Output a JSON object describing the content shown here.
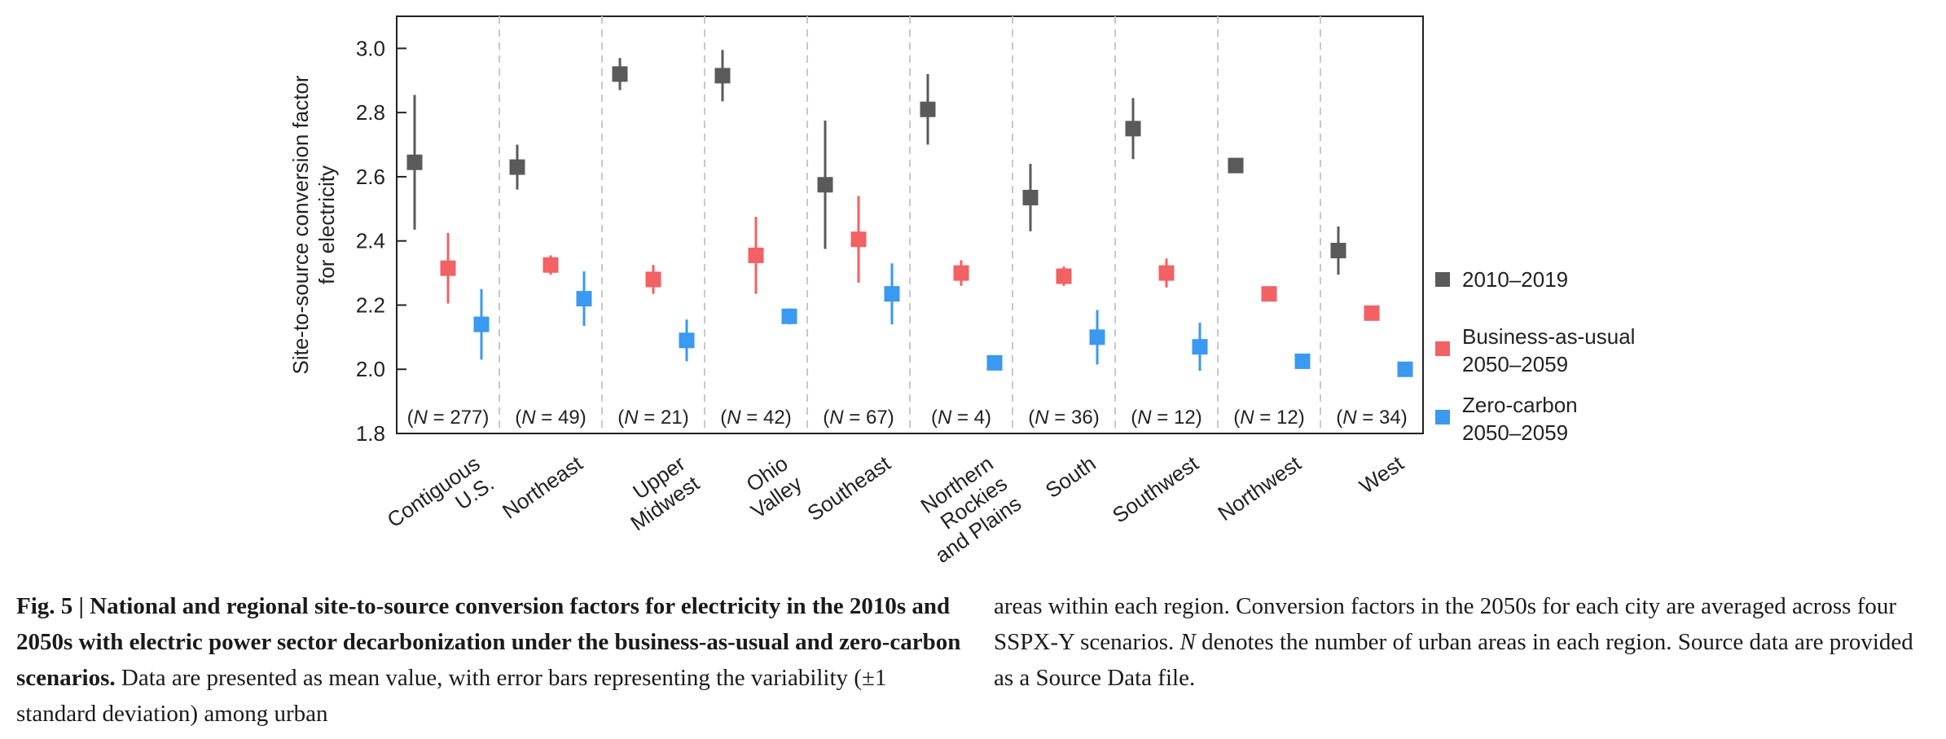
{
  "chart_data": {
    "type": "scatter",
    "ylabel_lines": [
      "Site-to-source conversion factor",
      "for electricity"
    ],
    "ylim": [
      1.8,
      3.1
    ],
    "yticks": [
      "1.8",
      "2.0",
      "2.2",
      "2.4",
      "2.6",
      "2.8",
      "3.0"
    ],
    "grid": false,
    "legend_position": "right",
    "categories": [
      {
        "label_lines": [
          "Contiguous",
          "U.S."
        ],
        "n_prefix": "(",
        "n_italic": "N",
        "n_suffix": " = 277)"
      },
      {
        "label_lines": [
          "Northeast"
        ],
        "n_prefix": "(",
        "n_italic": "N",
        "n_suffix": " = 49)"
      },
      {
        "label_lines": [
          "Upper",
          "Midwest"
        ],
        "n_prefix": "(",
        "n_italic": "N",
        "n_suffix": " = 21)"
      },
      {
        "label_lines": [
          "Ohio",
          "Valley"
        ],
        "n_prefix": "(",
        "n_italic": "N",
        "n_suffix": " = 42)"
      },
      {
        "label_lines": [
          "Southeast"
        ],
        "n_prefix": "(",
        "n_italic": "N",
        "n_suffix": " = 67)"
      },
      {
        "label_lines": [
          "Northern",
          "Rockies",
          "and Plains"
        ],
        "n_prefix": "(",
        "n_italic": "N",
        "n_suffix": " = 4)"
      },
      {
        "label_lines": [
          "South"
        ],
        "n_prefix": "(",
        "n_italic": "N",
        "n_suffix": " = 36)"
      },
      {
        "label_lines": [
          "Southwest"
        ],
        "n_prefix": "(",
        "n_italic": "N",
        "n_suffix": " = 12)"
      },
      {
        "label_lines": [
          "Northwest"
        ],
        "n_prefix": "(",
        "n_italic": "N",
        "n_suffix": " = 12)"
      },
      {
        "label_lines": [
          "West"
        ],
        "n_prefix": "(",
        "n_italic": "N",
        "n_suffix": " = 34)"
      }
    ],
    "series": [
      {
        "legend_lines": [
          "2010–2019"
        ],
        "color": "#5a5a5a",
        "means": [
          2.645,
          2.63,
          2.92,
          2.915,
          2.575,
          2.81,
          2.535,
          2.75,
          2.635,
          2.37
        ],
        "errors": [
          0.21,
          0.07,
          0.05,
          0.08,
          0.2,
          0.11,
          0.105,
          0.095,
          0.0,
          0.075
        ]
      },
      {
        "legend_lines": [
          "Business-as-usual",
          "2050–2059"
        ],
        "color": "#f26163",
        "means": [
          2.315,
          2.325,
          2.28,
          2.355,
          2.405,
          2.3,
          2.29,
          2.3,
          2.235,
          2.175
        ],
        "errors": [
          0.11,
          0.03,
          0.045,
          0.12,
          0.135,
          0.04,
          0.03,
          0.045,
          0.0,
          0.0
        ]
      },
      {
        "legend_lines": [
          "Zero-carbon",
          "2050–2059"
        ],
        "color": "#3a99f0",
        "means": [
          2.14,
          2.22,
          2.09,
          2.165,
          2.235,
          2.02,
          2.1,
          2.07,
          2.025,
          2.0
        ],
        "errors": [
          0.11,
          0.085,
          0.065,
          0.025,
          0.095,
          0.0,
          0.085,
          0.075,
          0.0,
          0.02
        ]
      }
    ]
  },
  "caption": {
    "bold": "Fig. 5 | National and regional site-to-source conversion factors for electricity in the 2010s and 2050s with electric power sector decarbonization under the business-as-usual and zero-carbon scenarios.",
    "text1": " Data are presented as mean value, with error bars representing the variability (±1 standard deviation) among urban",
    "text2": "areas within each region. Conversion factors in the 2050s for each city are averaged across four SSPX-Y scenarios. ",
    "italic": "N",
    "text3": " denotes the number of urban areas in each region. Source data are provided as a Source Data file."
  }
}
